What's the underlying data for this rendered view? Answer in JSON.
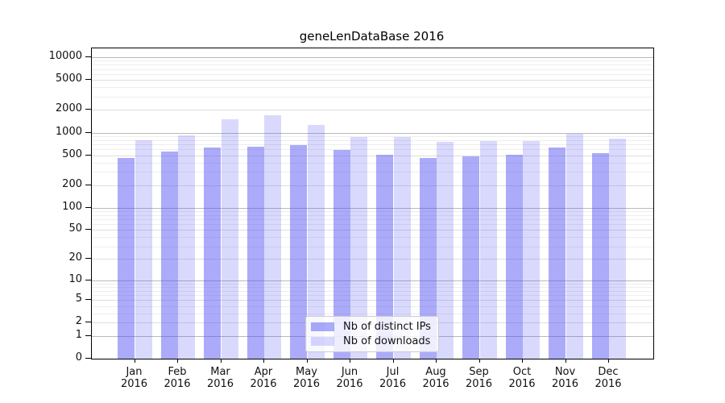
{
  "chart_data": {
    "type": "bar",
    "title": "geneLenDataBase 2016",
    "categories": [
      "Jan",
      "Feb",
      "Mar",
      "Apr",
      "May",
      "Jun",
      "Jul",
      "Aug",
      "Sep",
      "Oct",
      "Nov",
      "Dec"
    ],
    "x_year_line": "2016",
    "series": [
      {
        "name": "Nb of distinct IPs",
        "color": "#5050f5",
        "alpha": 0.48,
        "values": [
          455,
          555,
          640,
          645,
          685,
          590,
          505,
          455,
          480,
          510,
          640,
          530
        ]
      },
      {
        "name": "Nb of downloads",
        "color": "#5050f5",
        "alpha": 0.22,
        "values": [
          795,
          910,
          1500,
          1700,
          1270,
          870,
          880,
          760,
          780,
          780,
          970,
          830
        ]
      }
    ],
    "y_ticks": [
      0,
      1,
      2,
      5,
      10,
      20,
      50,
      100,
      200,
      500,
      1000,
      2000,
      5000,
      10000
    ],
    "yscale": "pseudo-log (log10 of 1+value), 0 at baseline",
    "ylim": [
      0,
      13300
    ],
    "grid": "horizontal major+minor",
    "legend_position": "lower center"
  }
}
